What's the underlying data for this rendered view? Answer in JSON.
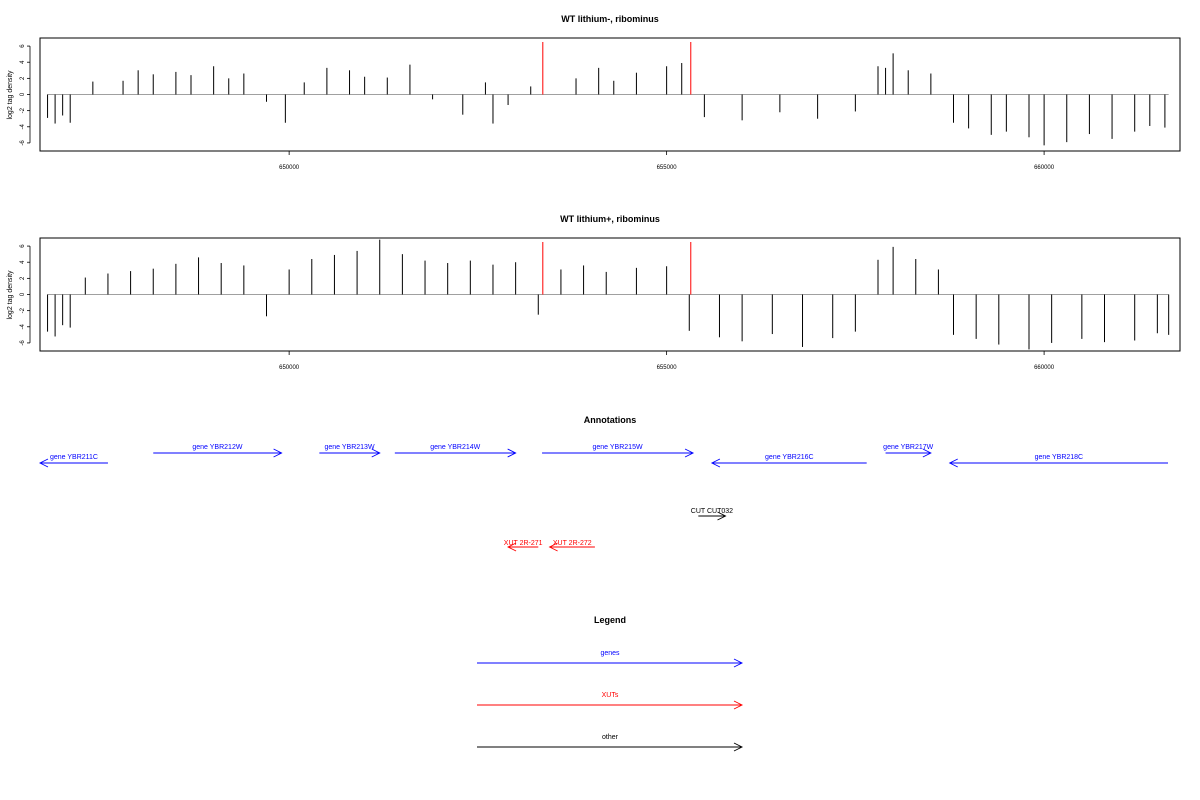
{
  "chart_data": [
    {
      "type": "bar",
      "title": "WT lithium-, ribominus",
      "ylabel": "log2 tag density",
      "xlabel": "",
      "xlim": [
        646700,
        661800
      ],
      "ylim": [
        -7,
        7
      ],
      "yticks": [
        -6,
        -4,
        -2,
        0,
        2,
        4,
        6
      ],
      "xticks": [
        650000,
        655000,
        660000
      ],
      "grid": false,
      "markers": [
        {
          "x": 653360
        },
        {
          "x": 655320
        }
      ],
      "series": [
        {
          "values": [
            [
              646800,
              -2.9
            ],
            [
              646900,
              -3.6
            ],
            [
              647000,
              -2.6
            ],
            [
              647100,
              -3.5
            ],
            [
              647400,
              1.6
            ],
            [
              647800,
              1.7
            ],
            [
              648000,
              3.0
            ],
            [
              648200,
              2.5
            ],
            [
              648500,
              2.8
            ],
            [
              648700,
              2.4
            ],
            [
              649000,
              3.5
            ],
            [
              649200,
              2.0
            ],
            [
              649400,
              2.6
            ],
            [
              649700,
              -0.9
            ],
            [
              649950,
              -3.5
            ],
            [
              650200,
              1.5
            ],
            [
              650500,
              3.3
            ],
            [
              650800,
              3.0
            ],
            [
              651000,
              2.2
            ],
            [
              651300,
              2.1
            ],
            [
              651600,
              3.7
            ],
            [
              651900,
              -0.6
            ],
            [
              652300,
              -2.5
            ],
            [
              652600,
              1.5
            ],
            [
              652700,
              -3.6
            ],
            [
              652900,
              -1.3
            ],
            [
              653200,
              1.0
            ],
            [
              653800,
              2.0
            ],
            [
              654100,
              3.3
            ],
            [
              654300,
              1.7
            ],
            [
              654600,
              2.7
            ],
            [
              655000,
              3.5
            ],
            [
              655200,
              3.9
            ],
            [
              655500,
              -2.8
            ],
            [
              656000,
              -3.2
            ],
            [
              656500,
              -2.2
            ],
            [
              657000,
              -3.0
            ],
            [
              657500,
              -2.1
            ],
            [
              657800,
              3.5
            ],
            [
              657900,
              3.3
            ],
            [
              658000,
              5.1
            ],
            [
              658200,
              3.0
            ],
            [
              658500,
              2.6
            ],
            [
              658800,
              -3.5
            ],
            [
              659000,
              -4.2
            ],
            [
              659300,
              -5.0
            ],
            [
              659500,
              -4.6
            ],
            [
              659800,
              -5.3
            ],
            [
              660000,
              -6.3
            ],
            [
              660300,
              -5.9
            ],
            [
              660600,
              -4.9
            ],
            [
              660900,
              -5.5
            ],
            [
              661200,
              -4.6
            ],
            [
              661400,
              -3.9
            ],
            [
              661600,
              -4.1
            ]
          ]
        }
      ]
    },
    {
      "type": "bar",
      "title": "WT lithium+, ribominus",
      "ylabel": "log2 tag density",
      "xlabel": "",
      "xlim": [
        646700,
        661800
      ],
      "ylim": [
        -7,
        7
      ],
      "yticks": [
        -6,
        -4,
        -2,
        0,
        2,
        4,
        6
      ],
      "xticks": [
        650000,
        655000,
        660000
      ],
      "grid": false,
      "markers": [
        {
          "x": 653360
        },
        {
          "x": 655320
        }
      ],
      "series": [
        {
          "values": [
            [
              646800,
              -4.6
            ],
            [
              646900,
              -5.2
            ],
            [
              647000,
              -3.8
            ],
            [
              647100,
              -4.1
            ],
            [
              647300,
              2.1
            ],
            [
              647600,
              2.6
            ],
            [
              647900,
              2.9
            ],
            [
              648200,
              3.2
            ],
            [
              648500,
              3.8
            ],
            [
              648800,
              4.6
            ],
            [
              649100,
              3.9
            ],
            [
              649400,
              3.6
            ],
            [
              649700,
              -2.7
            ],
            [
              650000,
              3.1
            ],
            [
              650300,
              4.4
            ],
            [
              650600,
              4.9
            ],
            [
              650900,
              5.4
            ],
            [
              651200,
              6.8
            ],
            [
              651500,
              5.0
            ],
            [
              651800,
              4.2
            ],
            [
              652100,
              3.9
            ],
            [
              652400,
              4.2
            ],
            [
              652700,
              3.7
            ],
            [
              653000,
              4.0
            ],
            [
              653300,
              -2.5
            ],
            [
              653600,
              3.1
            ],
            [
              653900,
              3.6
            ],
            [
              654200,
              2.8
            ],
            [
              654600,
              3.3
            ],
            [
              655000,
              3.5
            ],
            [
              655300,
              -4.5
            ],
            [
              655700,
              -5.3
            ],
            [
              656000,
              -5.8
            ],
            [
              656400,
              -4.9
            ],
            [
              656800,
              -6.5
            ],
            [
              657200,
              -5.4
            ],
            [
              657500,
              -4.6
            ],
            [
              657800,
              4.3
            ],
            [
              658000,
              5.9
            ],
            [
              658300,
              4.4
            ],
            [
              658600,
              3.1
            ],
            [
              658800,
              -5.0
            ],
            [
              659100,
              -5.5
            ],
            [
              659400,
              -6.2
            ],
            [
              659800,
              -6.8
            ],
            [
              660100,
              -6.0
            ],
            [
              660500,
              -5.5
            ],
            [
              660800,
              -5.9
            ],
            [
              661200,
              -5.7
            ],
            [
              661500,
              -4.8
            ],
            [
              661650,
              -5.0
            ]
          ]
        }
      ]
    }
  ],
  "annotations": {
    "title": "Annotations",
    "genes": [
      {
        "label": "gene YBR211C",
        "start": 646700,
        "end": 647600,
        "dir": "rev",
        "row": 1
      },
      {
        "label": "gene YBR212W",
        "start": 648200,
        "end": 649900,
        "dir": "fwd",
        "row": 0
      },
      {
        "label": "gene YBR213W",
        "start": 650400,
        "end": 651200,
        "dir": "fwd",
        "row": 0
      },
      {
        "label": "gene YBR214W",
        "start": 651400,
        "end": 653000,
        "dir": "fwd",
        "row": 0
      },
      {
        "label": "gene YBR215W",
        "start": 653350,
        "end": 655350,
        "dir": "fwd",
        "row": 0
      },
      {
        "label": "gene YBR216C",
        "start": 655600,
        "end": 657650,
        "dir": "rev",
        "row": 1
      },
      {
        "label": "gene YBR217W",
        "start": 657900,
        "end": 658500,
        "dir": "fwd",
        "row": 0
      },
      {
        "label": "gene YBR218C",
        "start": 658750,
        "end": 661850,
        "dir": "rev",
        "row": 1
      }
    ],
    "others": [
      {
        "label": "CUT CUT032",
        "start": 655420,
        "end": 655780,
        "dir": "fwd"
      }
    ],
    "xuts": [
      {
        "label": "XUT 2R-271",
        "start": 652900,
        "end": 653300,
        "dir": "rev"
      },
      {
        "label": "XUT 2R-272",
        "start": 653450,
        "end": 654050,
        "dir": "rev"
      }
    ]
  },
  "legend": {
    "title": "Legend",
    "items": [
      {
        "label": "genes",
        "color": "#0000ff"
      },
      {
        "label": "XUTs",
        "color": "#ff0000"
      },
      {
        "label": "other",
        "color": "#000000"
      }
    ]
  },
  "colors": {
    "gene": "#0000ff",
    "xut": "#ff0000",
    "other": "#000000",
    "marker": "#ff0000",
    "bar": "#000000",
    "zero": "#808080"
  }
}
